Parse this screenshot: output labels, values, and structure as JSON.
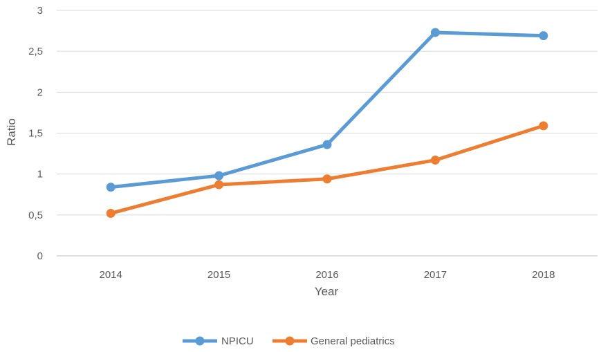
{
  "chart_data": {
    "type": "line",
    "title": "",
    "xlabel": "Year",
    "ylabel": "Ratio",
    "categories": [
      "2014",
      "2015",
      "2016",
      "2017",
      "2018"
    ],
    "ylim": [
      0,
      3
    ],
    "yticks": [
      0,
      0.5,
      1,
      1.5,
      2,
      2.5,
      3
    ],
    "ytick_labels": [
      "0",
      "0,5",
      "1",
      "1,5",
      "2",
      "2,5",
      "3"
    ],
    "grid": "horizontal",
    "legend_position": "bottom",
    "series": [
      {
        "name": "NPICU",
        "color": "#5b9bd5",
        "values": [
          0.84,
          0.98,
          1.36,
          2.73,
          2.69
        ]
      },
      {
        "name": "General pediatrics",
        "color": "#ed7d31",
        "values": [
          0.52,
          0.87,
          0.94,
          1.17,
          1.59
        ]
      }
    ]
  }
}
